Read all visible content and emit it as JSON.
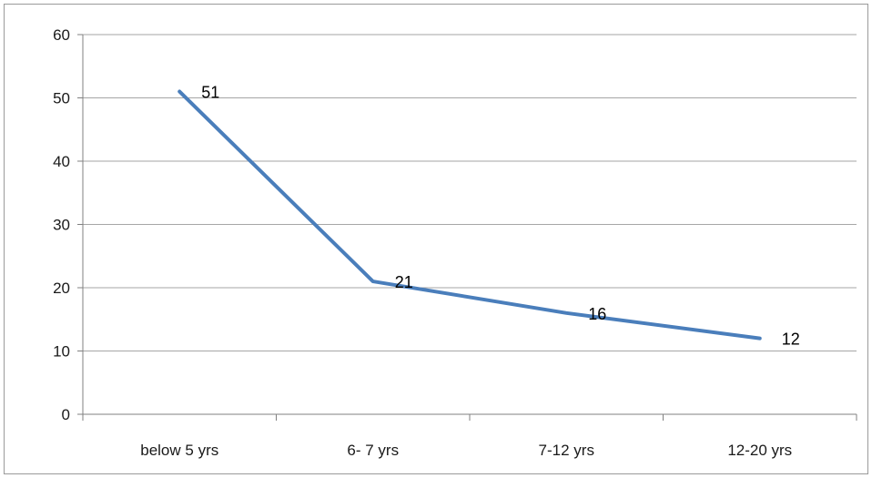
{
  "chart_data": {
    "type": "line",
    "title": "",
    "xlabel": "",
    "ylabel": "",
    "categories": [
      "below 5 yrs",
      "6- 7 yrs",
      "7-12 yrs",
      "12-20 yrs"
    ],
    "series": [
      {
        "values": [
          51,
          21,
          16,
          12
        ]
      }
    ],
    "ylim": [
      0,
      60
    ],
    "yticks": [
      "0",
      "10",
      "20",
      "30",
      "40",
      "50",
      "60"
    ],
    "data_labels": [
      "51",
      "21",
      "16",
      "12"
    ],
    "grid": true,
    "legend": "none",
    "colors": {
      "line": "#4a7ebb",
      "grid": "#a6a6a6",
      "axis": "#808080"
    }
  }
}
